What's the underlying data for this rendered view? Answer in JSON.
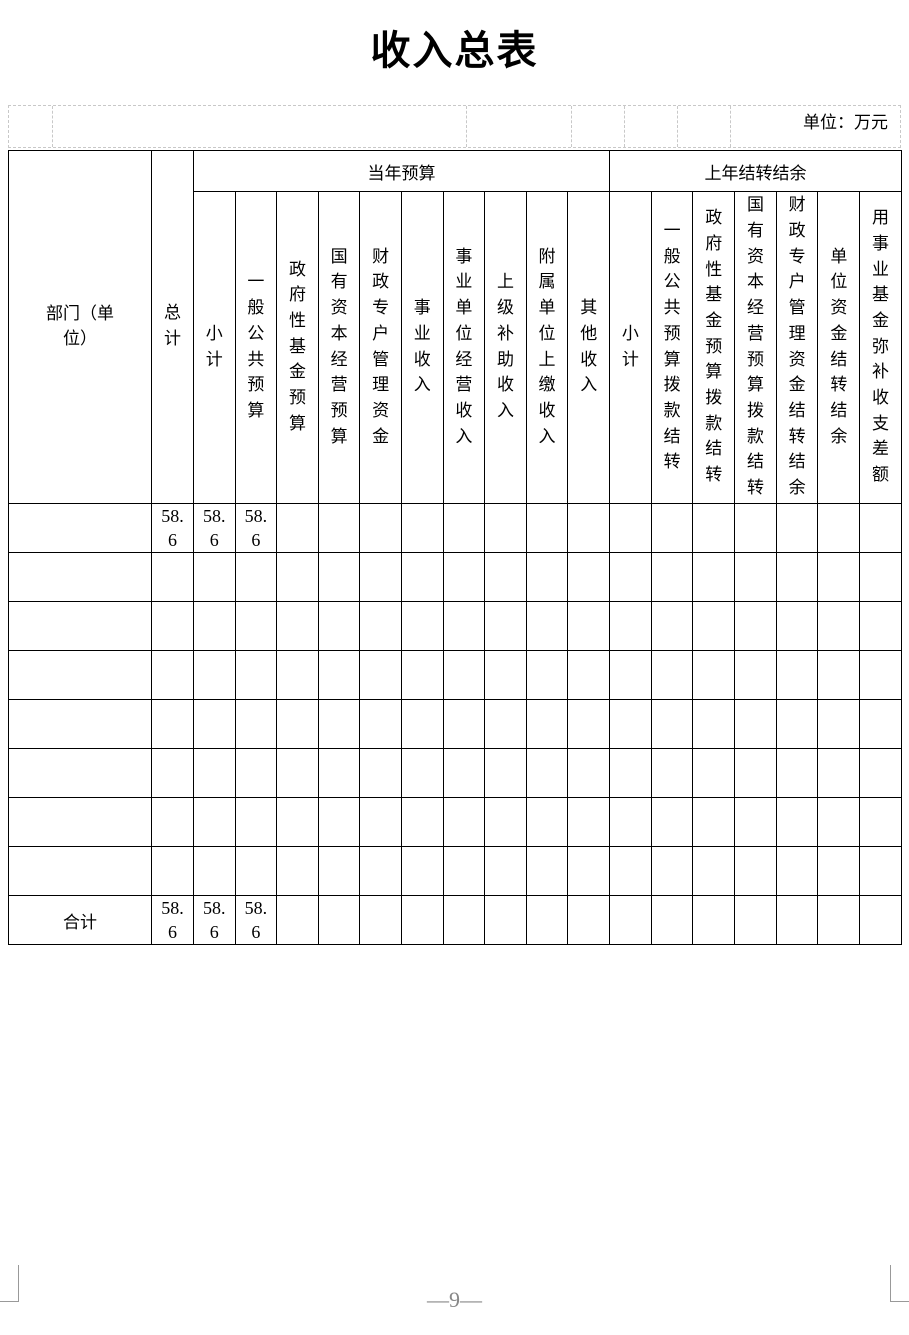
{
  "title": "收入总表",
  "unit": "单位：万元",
  "headers": {
    "dept": "部门（单位）",
    "total": "总计",
    "current_year": "当年预算",
    "prev_year": "上年结转结余",
    "current_cols": [
      "小计",
      "一般公共预算",
      "政府性基金预算",
      "国有资本经营预算",
      "财政专户管理资金",
      "事业收入",
      "事业单位经营收入",
      "上级补助收入",
      "附属单位上缴收入",
      "其他收入"
    ],
    "prev_cols": [
      "小计",
      "一般公共预算拨款结转",
      "政府性基金预算拨款结转",
      "国有资本经营预算拨款结转",
      "财政专户管理资金结转结余",
      "单位资金结转结余",
      "用事业基金弥补收支差额"
    ]
  },
  "rows": [
    {
      "dept": "",
      "values": [
        "58.6",
        "58.6",
        "58.6",
        "",
        "",
        "",
        "",
        "",
        "",
        "",
        "",
        "",
        "",
        "",
        "",
        "",
        "",
        ""
      ]
    },
    {
      "dept": "",
      "values": [
        "",
        "",
        "",
        "",
        "",
        "",
        "",
        "",
        "",
        "",
        "",
        "",
        "",
        "",
        "",
        "",
        "",
        ""
      ]
    },
    {
      "dept": "",
      "values": [
        "",
        "",
        "",
        "",
        "",
        "",
        "",
        "",
        "",
        "",
        "",
        "",
        "",
        "",
        "",
        "",
        "",
        ""
      ]
    },
    {
      "dept": "",
      "values": [
        "",
        "",
        "",
        "",
        "",
        "",
        "",
        "",
        "",
        "",
        "",
        "",
        "",
        "",
        "",
        "",
        "",
        ""
      ]
    },
    {
      "dept": "",
      "values": [
        "",
        "",
        "",
        "",
        "",
        "",
        "",
        "",
        "",
        "",
        "",
        "",
        "",
        "",
        "",
        "",
        "",
        ""
      ]
    },
    {
      "dept": "",
      "values": [
        "",
        "",
        "",
        "",
        "",
        "",
        "",
        "",
        "",
        "",
        "",
        "",
        "",
        "",
        "",
        "",
        "",
        ""
      ]
    },
    {
      "dept": "",
      "values": [
        "",
        "",
        "",
        "",
        "",
        "",
        "",
        "",
        "",
        "",
        "",
        "",
        "",
        "",
        "",
        "",
        "",
        ""
      ]
    },
    {
      "dept": "",
      "values": [
        "",
        "",
        "",
        "",
        "",
        "",
        "",
        "",
        "",
        "",
        "",
        "",
        "",
        "",
        "",
        "",
        "",
        ""
      ]
    },
    {
      "dept": "合计",
      "values": [
        "58.6",
        "58.6",
        "58.6",
        "",
        "",
        "",
        "",
        "",
        "",
        "",
        "",
        "",
        "",
        "",
        "",
        "",
        "",
        ""
      ]
    }
  ],
  "page_number": "—9—"
}
